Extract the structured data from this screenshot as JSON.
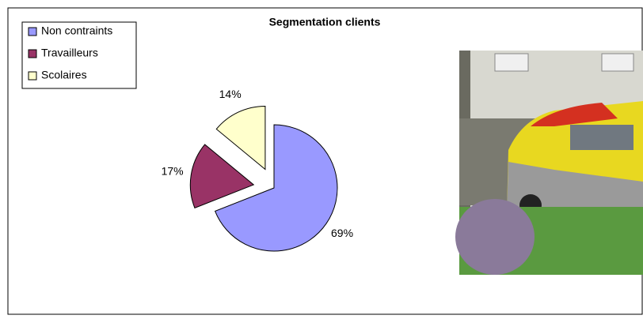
{
  "chart_data": {
    "type": "pie",
    "title": "Segmentation clients",
    "categories": [
      "Non contraints",
      "Travailleurs",
      "Scolaires"
    ],
    "values": [
      69,
      17,
      14
    ],
    "value_labels": [
      "69%",
      "17%",
      "14%"
    ],
    "colors": [
      "#9999ff",
      "#993366",
      "#ffffcc"
    ],
    "exploded": [
      false,
      true,
      true
    ],
    "legend": "top-left"
  }
}
